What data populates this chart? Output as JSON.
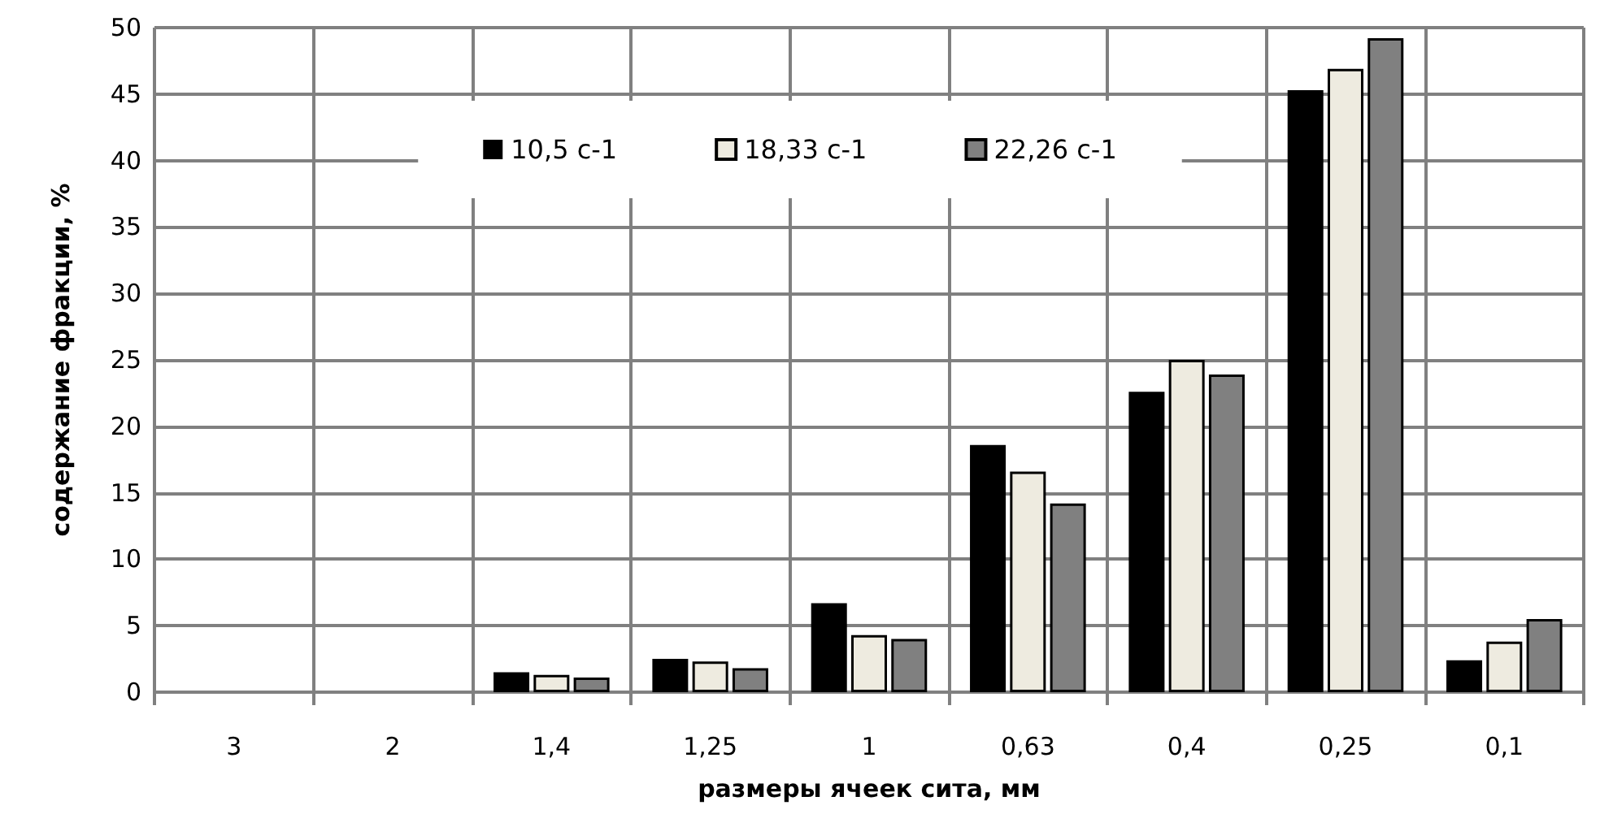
{
  "chart_data": {
    "type": "bar",
    "xlabel": "размеры ячеек сита, мм",
    "ylabel": "содержание фракции, %",
    "categories": [
      "3",
      "2",
      "1,4",
      "1,25",
      "1",
      "0,63",
      "0,4",
      "0,25",
      "0,1"
    ],
    "series": [
      {
        "name": "10,5 с-1",
        "color": "#000000",
        "values": [
          null,
          null,
          1.5,
          2.5,
          6.7,
          18.6,
          22.6,
          45.3,
          2.4
        ]
      },
      {
        "name": "18,33 с-1",
        "color": "#eeebe0",
        "values": [
          null,
          null,
          1.3,
          2.3,
          4.3,
          16.6,
          25.0,
          46.9,
          3.8
        ]
      },
      {
        "name": "22,26 с-1",
        "color": "#808080",
        "values": [
          null,
          null,
          1.1,
          1.8,
          4.0,
          14.2,
          23.9,
          49.2,
          5.5
        ]
      }
    ],
    "ylim": [
      0,
      50
    ],
    "yticks": [
      0,
      5,
      10,
      15,
      20,
      25,
      30,
      35,
      40,
      45,
      50
    ],
    "grid": true,
    "legend": "top"
  }
}
